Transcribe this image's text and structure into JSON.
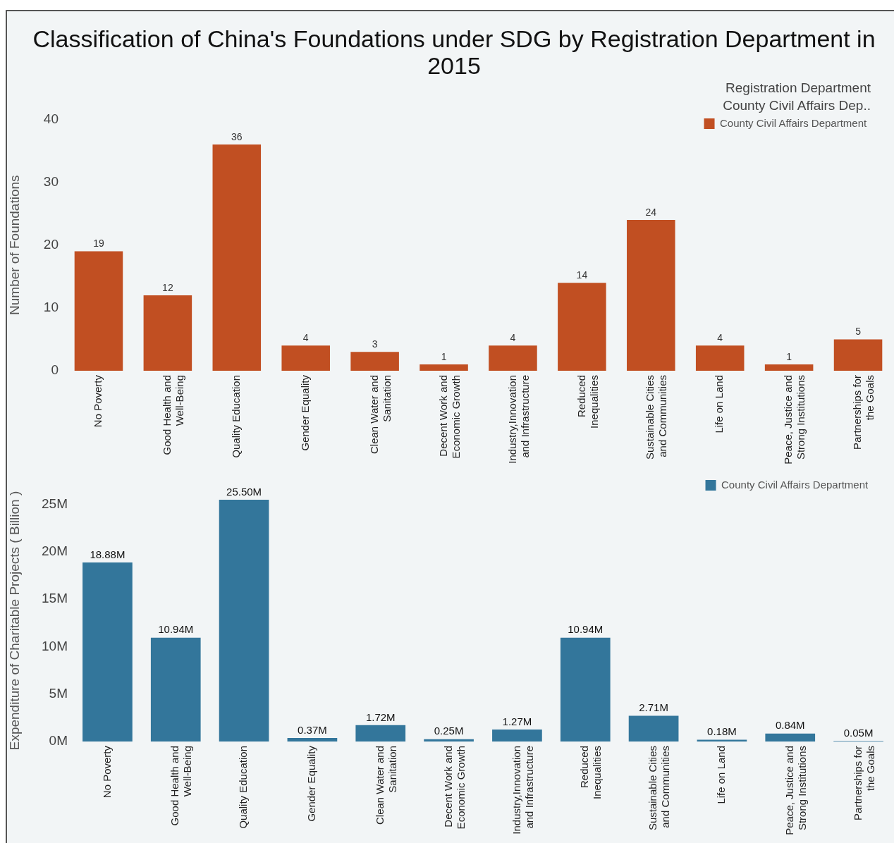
{
  "chart_data": [
    {
      "type": "bar",
      "title": "Classification of China's Foundations under SDG by Registration Department in 2015",
      "legend_title": "Registration Department",
      "annotations": [
        "County Civil Affairs Dep.."
      ],
      "ylabel": "Number of Foundations",
      "categories": [
        "No Poverty",
        "Good Health and Well-Being",
        "Quality Education",
        "Gender Equality",
        "Clean Water and Sanitation",
        "Decent Work and Economic Growth",
        "Industry,Innovation and Infrastructure",
        "Reduced Inequalities",
        "Sustainable Cities and Communities",
        "Life on Land",
        "Peace, Justice and Strong Institutions",
        "Partnerships for the Goals"
      ],
      "series": [
        {
          "name": "County Civil Affairs Department",
          "color": "#c14f22",
          "values": [
            19,
            12,
            36,
            4,
            3,
            1,
            4,
            14,
            24,
            4,
            1,
            5
          ]
        }
      ],
      "ylim": [
        0,
        40
      ],
      "yticks": [
        0,
        10,
        20,
        30,
        40
      ],
      "data_labels": true,
      "legend": "top right"
    },
    {
      "type": "bar",
      "ylabel": "Expenditure of Charitable Projects ( Billion )",
      "categories": [
        "No Poverty",
        "Good Health and Well-Being",
        "Quality Education",
        "Gender Equality",
        "Clean Water and Sanitation",
        "Decent Work and Economic Growth",
        "Industry,Innovation and Infrastructure",
        "Reduced Inequalities",
        "Sustainable Cities and Communities",
        "Life on Land",
        "Peace, Justice and Strong Institutions",
        "Partnerships for the Goals"
      ],
      "series": [
        {
          "name": "County Civil Affairs Department",
          "color": "#33769b",
          "values": [
            18.88,
            10.94,
            25.5,
            0.37,
            1.72,
            0.25,
            1.27,
            10.94,
            2.71,
            0.18,
            0.84,
            0.05
          ],
          "value_labels": [
            "18.88M",
            "10.94M",
            "25.50M",
            "0.37M",
            "1.72M",
            "0.25M",
            "1.27M",
            "10.94M",
            "2.71M",
            "0.18M",
            "0.84M",
            "0.05M"
          ]
        }
      ],
      "ylim": [
        0,
        25.5
      ],
      "yticks": [
        {
          "value": 0,
          "label": "0M"
        },
        {
          "value": 5,
          "label": "5M"
        },
        {
          "value": 10,
          "label": "10M"
        },
        {
          "value": 15,
          "label": "15M"
        },
        {
          "value": 20,
          "label": "20M"
        },
        {
          "value": 25,
          "label": "25M"
        }
      ],
      "legend": "top right"
    }
  ]
}
